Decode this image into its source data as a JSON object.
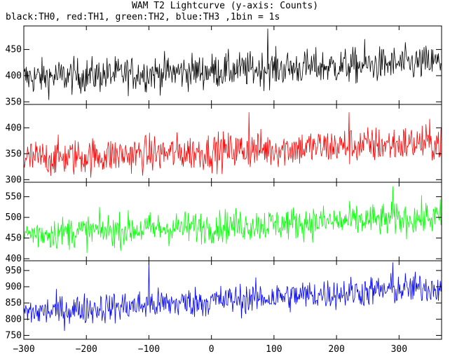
{
  "title": "WAM T2 Lightcurve (y-axis: Counts)",
  "subtitle": "black:TH0, red:TH1, green:TH2, blue:TH3 ,1bin = 1s",
  "chart_data": {
    "type": "line",
    "x_range": [
      -300,
      368
    ],
    "x_step": 1,
    "xticks": [
      -300,
      -200,
      -100,
      0,
      100,
      200,
      300
    ],
    "xtick_labels": [
      "−300",
      "−200",
      "−100",
      "0",
      "100",
      "200",
      "300"
    ],
    "panels": [
      {
        "name": "TH0",
        "color": "#000000",
        "ylim": [
          345,
          495
        ],
        "yticks": [
          350,
          400,
          450
        ],
        "ytick_labels": [
          "350",
          "400",
          "450"
        ],
        "trend": {
          "start": 396,
          "end": 425
        },
        "noise_sd": 17,
        "peaks": [
          [
            90,
            490
          ],
          [
            245,
            470
          ]
        ]
      },
      {
        "name": "TH1",
        "color": "#ff0000",
        "ylim": [
          295,
          445
        ],
        "yticks": [
          300,
          350,
          400
        ],
        "ytick_labels": [
          "300",
          "350",
          "400"
        ],
        "trend": {
          "start": 340,
          "end": 372
        },
        "noise_sd": 18,
        "peaks": [
          [
            60,
            430
          ],
          [
            220,
            430
          ]
        ]
      },
      {
        "name": "TH2",
        "color": "#00ff00",
        "ylim": [
          395,
          585
        ],
        "yticks": [
          400,
          450,
          500,
          550
        ],
        "ytick_labels": [
          "400",
          "450",
          "500",
          "550"
        ],
        "trend": {
          "start": 460,
          "end": 500
        },
        "noise_sd": 20,
        "peaks": [
          [
            290,
            575
          ]
        ]
      },
      {
        "name": "TH3",
        "color": "#0000ff",
        "ylim": [
          738,
          980
        ],
        "yticks": [
          750,
          800,
          850,
          900,
          950
        ],
        "ytick_labels": [
          "750",
          "800",
          "850",
          "900",
          "950"
        ],
        "trend": {
          "start": 820,
          "end": 900
        },
        "noise_sd": 24,
        "peaks": [
          [
            -100,
            975
          ],
          [
            290,
            975
          ]
        ]
      }
    ]
  }
}
